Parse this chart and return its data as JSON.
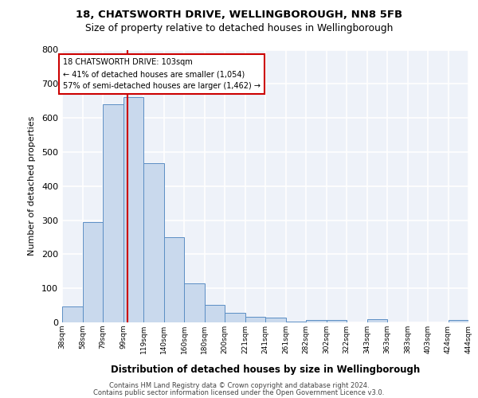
{
  "title1": "18, CHATSWORTH DRIVE, WELLINGBOROUGH, NN8 5FB",
  "title2": "Size of property relative to detached houses in Wellingborough",
  "xlabel": "Distribution of detached houses by size in Wellingborough",
  "ylabel": "Number of detached properties",
  "tick_labels": [
    "38sqm",
    "58sqm",
    "79sqm",
    "99sqm",
    "119sqm",
    "140sqm",
    "160sqm",
    "180sqm",
    "200sqm",
    "221sqm",
    "241sqm",
    "261sqm",
    "282sqm",
    "302sqm",
    "322sqm",
    "343sqm",
    "363sqm",
    "383sqm",
    "403sqm",
    "424sqm",
    "444sqm"
  ],
  "bar_values": [
    47,
    295,
    641,
    662,
    468,
    251,
    115,
    51,
    28,
    16,
    14,
    3,
    7,
    8,
    0,
    9,
    0,
    0,
    0,
    8
  ],
  "bar_color": "#c9d9ed",
  "bar_edge_color": "#5b8ec4",
  "background_color": "#eef2f9",
  "grid_color": "#ffffff",
  "vline_x": 4,
  "vline_color": "#cc0000",
  "annotation_line1": "18 CHATSWORTH DRIVE: 103sqm",
  "annotation_line2": "← 41% of detached houses are smaller (1,054)",
  "annotation_line3": "57% of semi-detached houses are larger (1,462) →",
  "annotation_box_color": "#ffffff",
  "annotation_box_edge": "#cc0000",
  "ylim": [
    0,
    800
  ],
  "yticks": [
    0,
    100,
    200,
    300,
    400,
    500,
    600,
    700,
    800
  ],
  "footer1": "Contains HM Land Registry data © Crown copyright and database right 2024.",
  "footer2": "Contains public sector information licensed under the Open Government Licence v3.0."
}
